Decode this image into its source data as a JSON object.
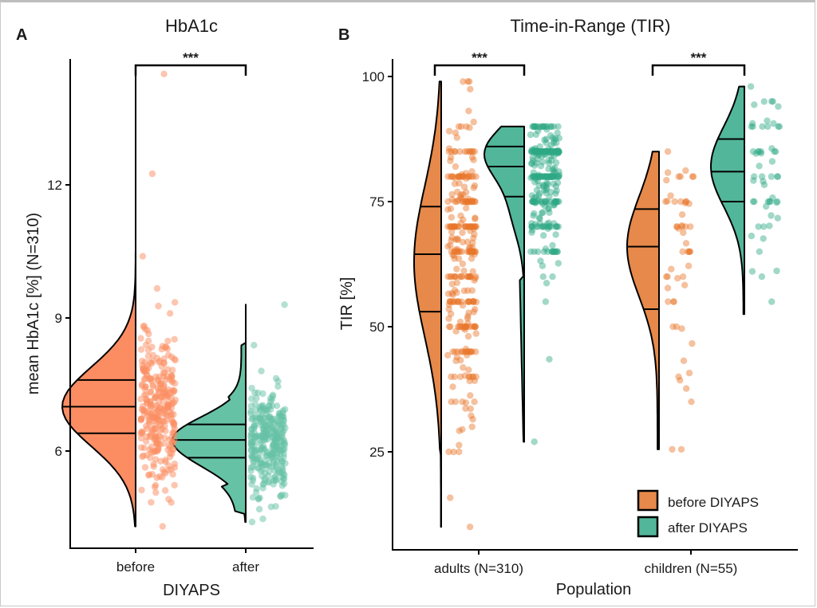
{
  "chart_data": [
    {
      "type": "raincloud",
      "panel_label": "A",
      "title": "HbA1c",
      "xlabel": "DIYAPS",
      "ylabel": "mean HbA1c [%] (N=310)",
      "categories": [
        "before",
        "after"
      ],
      "ylim": [
        4.0,
        15.2
      ],
      "yticks": [
        6,
        9,
        12
      ],
      "ytick_labels": [
        "6",
        "9",
        "12"
      ],
      "significance": {
        "between": [
          "before",
          "after"
        ],
        "label": "***"
      },
      "colors": {
        "before": "#FC8D62",
        "after": "#66C2A5"
      },
      "series": [
        {
          "name": "before",
          "n": 310,
          "min": 4.3,
          "max": 14.5,
          "q25": 6.4,
          "median": 7.0,
          "q75": 7.6,
          "mode": 7.0
        },
        {
          "name": "after",
          "n": 310,
          "min": 4.4,
          "max": 9.3,
          "q25": 5.85,
          "median": 6.25,
          "q75": 6.6,
          "mode": 6.2
        }
      ]
    },
    {
      "type": "raincloud",
      "panel_label": "B",
      "title": "Time-in-Range (TIR)",
      "xlabel": "Population",
      "ylabel": "TIR [%]",
      "categories": [
        "adults (N=310)",
        "children (N=55)"
      ],
      "ylim": [
        8,
        103
      ],
      "yticks": [
        25,
        50,
        75,
        100
      ],
      "ytick_labels": [
        "25",
        "50",
        "75",
        "100"
      ],
      "legend": {
        "position": "bottom-right",
        "entries": [
          "before DIYAPS",
          "after DIYAPS"
        ]
      },
      "colors": {
        "before": "#E6894A",
        "after": "#52B69A",
        "before_points": "#E8752A",
        "after_points": "#2FA985"
      },
      "significance": [
        {
          "group": "adults (N=310)",
          "label": "***"
        },
        {
          "group": "children (N=55)",
          "label": "***"
        }
      ],
      "series": [
        {
          "name": "before DIYAPS",
          "group": "adults (N=310)",
          "n": 310,
          "min": 10,
          "max": 99,
          "q25": 53,
          "median": 64.5,
          "q75": 74
        },
        {
          "name": "after DIYAPS",
          "group": "adults (N=310)",
          "n": 310,
          "min": 27,
          "max": 90,
          "q25": 76,
          "median": 82,
          "q75": 86
        },
        {
          "name": "before DIYAPS",
          "group": "children (N=55)",
          "n": 55,
          "min": 25.5,
          "max": 85,
          "q25": 53.5,
          "median": 66,
          "q75": 73.5
        },
        {
          "name": "after DIYAPS",
          "group": "children (N=55)",
          "n": 55,
          "min": 52.5,
          "max": 98,
          "q25": 75,
          "median": 81,
          "q75": 87.5
        }
      ]
    }
  ]
}
